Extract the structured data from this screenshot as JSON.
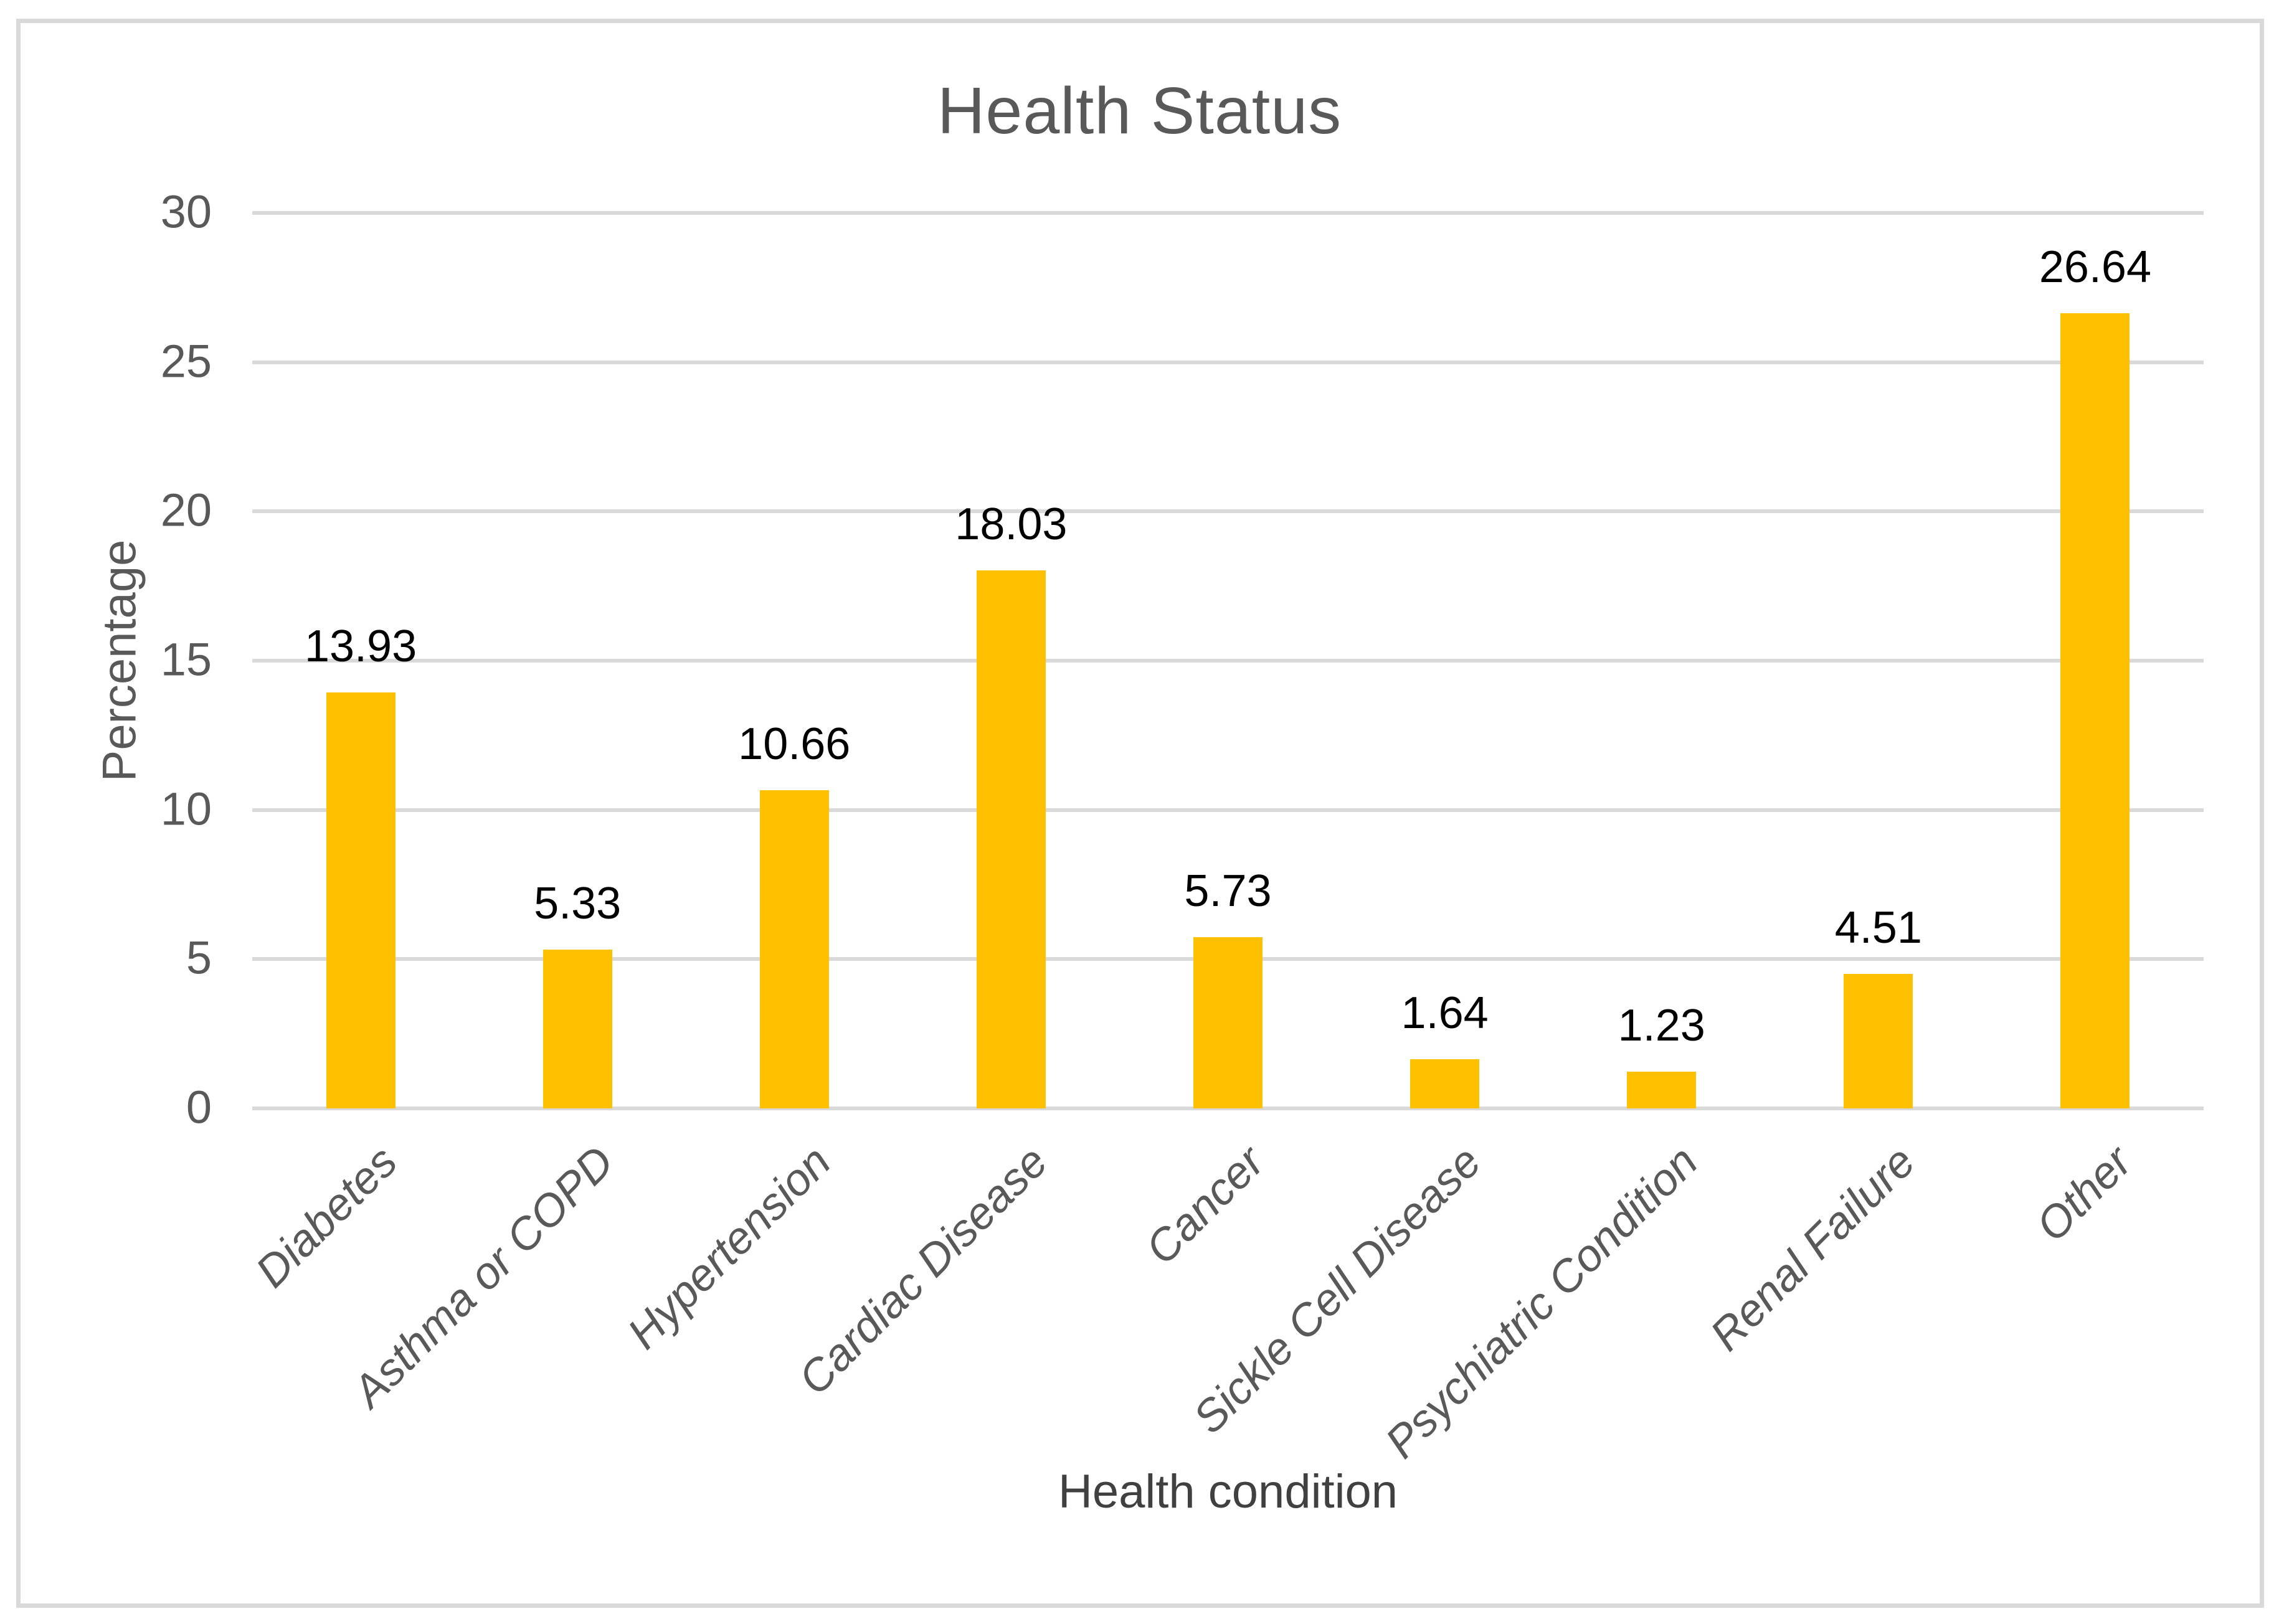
{
  "figure": {
    "background": "#FFFFFF",
    "frame_color": "#D9D9D9"
  },
  "chart_data": {
    "type": "bar",
    "title": "Health Status",
    "xlabel": "Health condition",
    "ylabel": "Percentage",
    "categories": [
      "Diabetes",
      "Asthma or COPD",
      "Hypertension",
      "Cardiac Disease",
      "Cancer",
      "Sickle Cell Disease",
      "Psychiatric Condition",
      "Renal Failure",
      "Other"
    ],
    "values": [
      13.93,
      5.33,
      10.66,
      18.03,
      5.73,
      1.64,
      1.23,
      4.51,
      26.64
    ],
    "value_label_decimals": 2,
    "ylim": [
      0,
      30
    ],
    "yticks": [
      0,
      5,
      10,
      15,
      20,
      25,
      30
    ],
    "grid": "horizontal",
    "legend_position": "none",
    "bar_color": "#FFC000",
    "gridline_color": "#D9D9D9",
    "axis_text_color": "#595959",
    "value_label_color": "#000000",
    "category_label_rotation_deg": 45,
    "category_label_style": "italic"
  }
}
